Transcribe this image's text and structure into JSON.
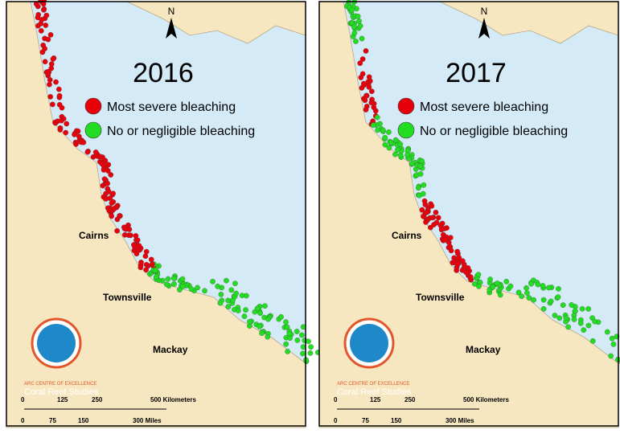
{
  "north": "N",
  "maps": [
    {
      "year": "2016"
    },
    {
      "year": "2017"
    }
  ],
  "legend": [
    {
      "label": "Most severe bleaching",
      "color": "#e8000b"
    },
    {
      "label": "No or negligible bleaching",
      "color": "#22dd22"
    }
  ],
  "cities": [
    "Cairns",
    "Townsville",
    "Mackay"
  ],
  "logo": {
    "line1": "ARC CENTRE OF EXCELLENCE",
    "line2": "Coral Reef Studies"
  },
  "scale": {
    "km": [
      "0",
      "125",
      "250",
      "500 Kilometers"
    ],
    "miles": [
      "0",
      "75",
      "150",
      "300 Miles"
    ]
  }
}
